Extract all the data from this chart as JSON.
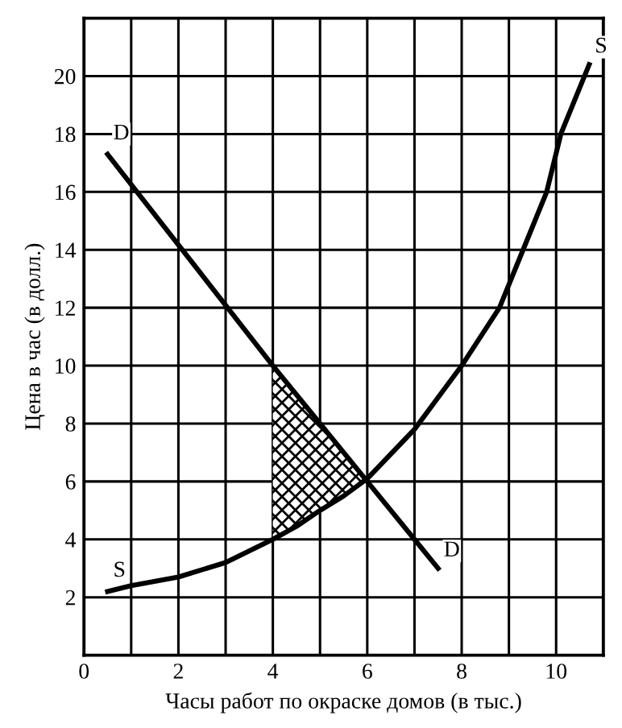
{
  "chart_data": {
    "type": "line",
    "xlabel": "Часы работ по окраске домов (в тыс.)",
    "ylabel": "Цена в час (в долл.)",
    "xlim": [
      0,
      11
    ],
    "ylim": [
      0,
      22
    ],
    "xticks": [
      0,
      {
        "value": 1,
        "label": null
      },
      2,
      {
        "value": 3,
        "label": null
      },
      4,
      {
        "value": 5,
        "label": null
      },
      6,
      {
        "value": 7,
        "label": null
      },
      8,
      {
        "value": 9,
        "label": null
      },
      10
    ],
    "yticks": [
      2,
      4,
      6,
      8,
      10,
      12,
      14,
      16,
      18,
      20
    ],
    "grid": true,
    "legend": false,
    "marker": "none",
    "line_style": "solid",
    "series": [
      {
        "name": "D",
        "color": "#000000",
        "x": [
          0.5,
          4,
          6,
          7,
          7.5
        ],
        "values": [
          17.3,
          10,
          6,
          4,
          3
        ]
      },
      {
        "name": "S",
        "color": "#000000",
        "x": [
          0.5,
          1,
          2,
          3,
          4,
          4.5,
          5,
          5.5,
          6,
          7,
          8,
          8.8,
          9.3,
          9.8,
          10.1,
          10.7
        ],
        "values": [
          2.2,
          2.4,
          2.7,
          3.2,
          4,
          4.45,
          5,
          5.5,
          6.1,
          7.8,
          10,
          12,
          14,
          16,
          18,
          20.4
        ],
        "lower": [
          null,
          null,
          null,
          null,
          4,
          4.45,
          5,
          5.5,
          6.1,
          null,
          null,
          null,
          null,
          null,
          null,
          null
        ],
        "upper": [
          null,
          null,
          null,
          null,
          10,
          9,
          8,
          7,
          6.1,
          null,
          null,
          null,
          null,
          null,
          null,
          null
        ]
      }
    ]
  }
}
